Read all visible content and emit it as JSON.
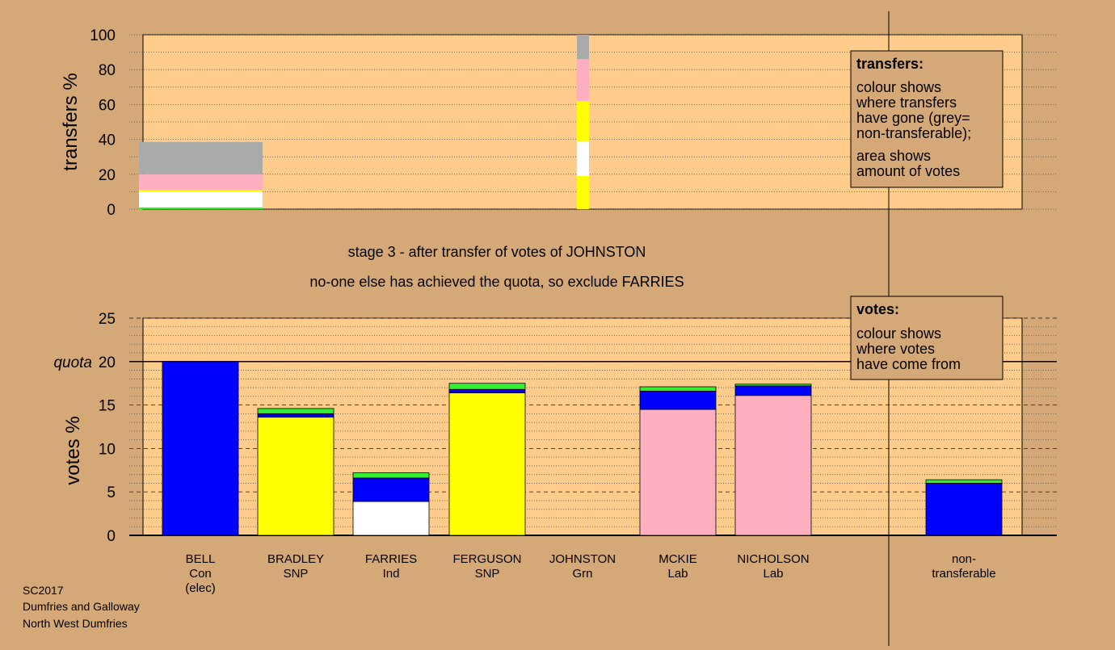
{
  "colors": {
    "page_bg": "#d4a977",
    "plot_bg": "#ffcc8c",
    "Con": "#0000ff",
    "SNP": "#ffff00",
    "Ind": "#ffffff",
    "Lab": "#ffb0c0",
    "Grn": "#33ee33",
    "nontransferable": "#aaaaaa"
  },
  "stage_title": "stage 3 - after transfer of votes of JOHNSTON",
  "stage_subtitle": "no-one else has achieved the quota, so exclude FARRIES",
  "footer": [
    "SC2017",
    "Dumfries and Galloway",
    "North West Dumfries"
  ],
  "transfers_legend": {
    "title": "transfers:",
    "lines": [
      "colour shows",
      "where transfers",
      "have gone (grey=",
      "non-transferable);",
      "area shows",
      "amount of votes"
    ]
  },
  "votes_legend": {
    "title": "votes:",
    "lines": [
      "colour shows",
      "where votes",
      "have come from"
    ]
  },
  "chart_data": [
    {
      "type": "bar",
      "name": "transfers",
      "ylabel": "transfers %",
      "ylim": [
        0,
        100
      ],
      "yticks": [
        0,
        20,
        40,
        60,
        80,
        100
      ],
      "bars": [
        {
          "from": "BELL",
          "segments": [
            {
              "party": "Grn",
              "value": 1
            },
            {
              "party": "Ind",
              "value": 9
            },
            {
              "party": "SNP",
              "value": 1
            },
            {
              "party": "Lab",
              "value": 9
            },
            {
              "party": "nontransferable",
              "value": 18.5
            }
          ]
        },
        {
          "from": "JOHNSTON",
          "segments": [
            {
              "party": "SNP",
              "value": 19
            },
            {
              "party": "Ind",
              "value": 20
            },
            {
              "party": "SNP",
              "value": 23
            },
            {
              "party": "Lab",
              "value": 24
            },
            {
              "party": "nontransferable",
              "value": 14
            }
          ]
        }
      ]
    },
    {
      "type": "bar",
      "name": "votes",
      "ylabel": "votes %",
      "ylim": [
        0,
        25
      ],
      "yticks": [
        0,
        5,
        10,
        15,
        20,
        25
      ],
      "quota": 20,
      "quota_label": "quota",
      "categories": [
        {
          "name": "BELL",
          "party": "Con",
          "note": "(elec)"
        },
        {
          "name": "BRADLEY",
          "party": "SNP",
          "note": ""
        },
        {
          "name": "FARRIES",
          "party": "Ind",
          "note": ""
        },
        {
          "name": "FERGUSON",
          "party": "SNP",
          "note": ""
        },
        {
          "name": "JOHNSTON",
          "party": "Grn",
          "note": ""
        },
        {
          "name": "MCKIE",
          "party": "Lab",
          "note": ""
        },
        {
          "name": "NICHOLSON",
          "party": "Lab",
          "note": ""
        },
        {
          "name": "non-",
          "party": "transferable",
          "note": ""
        }
      ],
      "stacks": [
        [
          {
            "party": "Con",
            "value": 20
          }
        ],
        [
          {
            "party": "SNP",
            "value": 13.6
          },
          {
            "party": "Con",
            "value": 0.4
          },
          {
            "party": "Grn",
            "value": 0.6
          }
        ],
        [
          {
            "party": "Ind",
            "value": 3.9
          },
          {
            "party": "Con",
            "value": 2.7
          },
          {
            "party": "Grn",
            "value": 0.6
          }
        ],
        [
          {
            "party": "SNP",
            "value": 16.4
          },
          {
            "party": "Con",
            "value": 0.4
          },
          {
            "party": "Grn",
            "value": 0.7
          }
        ],
        [],
        [
          {
            "party": "Lab",
            "value": 14.5
          },
          {
            "party": "Con",
            "value": 2.1
          },
          {
            "party": "Grn",
            "value": 0.5
          }
        ],
        [
          {
            "party": "Lab",
            "value": 16.1
          },
          {
            "party": "Con",
            "value": 1.1
          },
          {
            "party": "Grn",
            "value": 0.2
          }
        ],
        [
          {
            "party": "Con",
            "value": 6.0
          },
          {
            "party": "Grn",
            "value": 0.4
          }
        ]
      ]
    }
  ]
}
